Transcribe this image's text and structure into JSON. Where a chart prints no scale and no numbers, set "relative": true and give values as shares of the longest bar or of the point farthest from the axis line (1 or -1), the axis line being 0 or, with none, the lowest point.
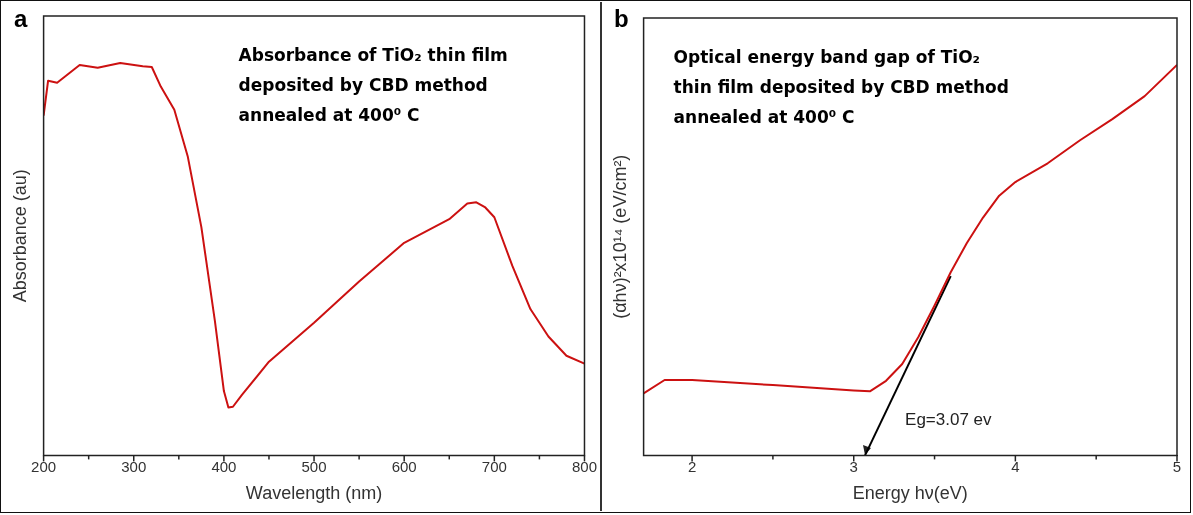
{
  "chart_data": [
    {
      "type": "line",
      "relative": true,
      "xlabel": "Wavelength (nm)",
      "ylabel": "Absorbance (au)",
      "annotations": [
        "a",
        "Absorbance of TiO₂ thin film deposited by CBD method annealed at 400⁰ C"
      ],
      "x": [
        200,
        205,
        215,
        240,
        260,
        285,
        310,
        320,
        330,
        345,
        360,
        375,
        390,
        400,
        405,
        410,
        420,
        450,
        500,
        550,
        600,
        650,
        670,
        680,
        690,
        700,
        720,
        740,
        760,
        780,
        800
      ],
      "xlim": [
        200,
        800
      ],
      "xticks": [
        200,
        {
          "value": 250,
          "label": null
        },
        300,
        {
          "value": 350,
          "label": null
        },
        400,
        {
          "value": 450,
          "label": null
        },
        500,
        {
          "value": 550,
          "label": null
        },
        600,
        {
          "value": 650,
          "label": null
        },
        700,
        {
          "value": 750,
          "label": null
        },
        800
      ],
      "series": [
        {
          "color": "#cc1111",
          "values": [
            0.866,
            0.955,
            0.95,
            0.995,
            0.988,
            1.0,
            0.992,
            0.99,
            0.94,
            0.881,
            0.761,
            0.582,
            0.343,
            0.164,
            0.122,
            0.124,
            0.154,
            0.239,
            0.338,
            0.443,
            0.542,
            0.602,
            0.642,
            0.645,
            0.632,
            0.607,
            0.483,
            0.373,
            0.303,
            0.254,
            0.234
          ]
        }
      ]
    },
    {
      "type": "line",
      "relative": true,
      "xlabel": "Energy hν(eV)",
      "ylabel": "(αhν)²x10¹⁴ (eV/cm²)",
      "annotations": [
        "b",
        "Optical energy band gap of TiO₂ thin film deposited by CBD method annealed at 400⁰ C",
        {
          "text": "Eg=3.07 ev",
          "x": 3.07,
          "y": 0
        }
      ],
      "xlim": [
        1.7,
        5
      ],
      "xticks": [
        2,
        {
          "value": 2.5,
          "label": null
        },
        3,
        {
          "value": 3.5,
          "label": null
        },
        4,
        {
          "value": 4.5,
          "label": null
        },
        5
      ],
      "series": [
        {
          "color": "#cc1111",
          "x": [
            1.7,
            1.83,
            2.0,
            2.5,
            3.0,
            3.1,
            3.2,
            3.3,
            3.4,
            3.5,
            3.6,
            3.7,
            3.8,
            3.9,
            4.0,
            4.2,
            4.4,
            4.6,
            4.8,
            5.0
          ],
          "values": [
            0.159,
            0.193,
            0.193,
            0.18,
            0.166,
            0.164,
            0.191,
            0.234,
            0.303,
            0.384,
            0.469,
            0.544,
            0.609,
            0.665,
            0.7,
            0.748,
            0.807,
            0.861,
            0.92,
            1.0
          ]
        },
        {
          "type": "line",
          "color": "#000000",
          "x": [
            3.6,
            3.07
          ],
          "values": [
            0.459,
            0
          ]
        }
      ]
    }
  ]
}
